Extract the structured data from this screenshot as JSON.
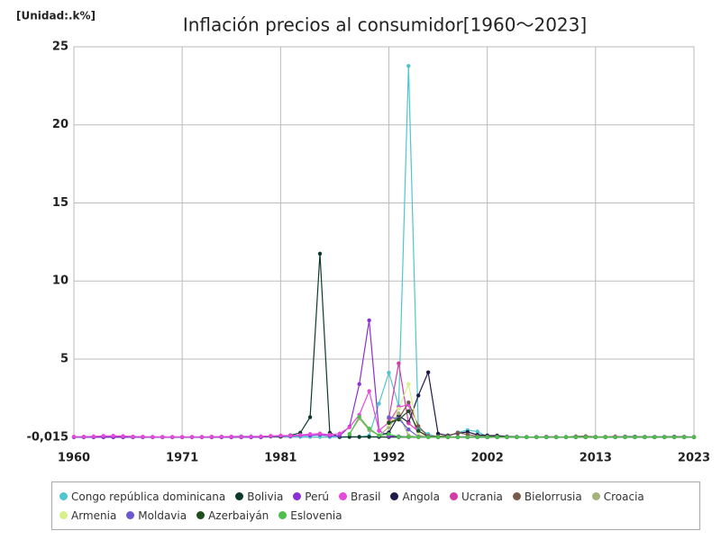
{
  "chart_data": {
    "type": "line",
    "title": "Inflación precios al consumidor[1960〜2023]",
    "unit_label": "[Unidad:.k%]",
    "x": [
      1960,
      1961,
      1962,
      1963,
      1964,
      1965,
      1966,
      1967,
      1968,
      1969,
      1970,
      1971,
      1972,
      1973,
      1974,
      1975,
      1976,
      1977,
      1978,
      1979,
      1980,
      1981,
      1982,
      1983,
      1984,
      1985,
      1986,
      1987,
      1988,
      1989,
      1990,
      1991,
      1992,
      1993,
      1994,
      1995,
      1996,
      1997,
      1998,
      1999,
      2000,
      2001,
      2002,
      2003,
      2004,
      2005,
      2006,
      2007,
      2008,
      2009,
      2010,
      2011,
      2012,
      2013,
      2014,
      2015,
      2016,
      2017,
      2018,
      2019,
      2020,
      2021,
      2022,
      2023
    ],
    "xlim": [
      1960,
      2023
    ],
    "xticks": [
      1960,
      1971,
      1981,
      1992,
      2002,
      2013,
      2023
    ],
    "ylim": [
      -0.015,
      25
    ],
    "yticks": [
      {
        "value": -0.015,
        "label": "-0,015"
      },
      5,
      10,
      15,
      20,
      25
    ],
    "grid": true,
    "legend": "bottom",
    "series": [
      {
        "name": "Congo república dominicana",
        "color": "#4fc6cd",
        "values": [
          0.01,
          0.02,
          0.03,
          0.02,
          0.03,
          0.02,
          0.01,
          0.01,
          0.02,
          0.01,
          0.01,
          0.01,
          0.01,
          0.01,
          0.02,
          0.03,
          0.03,
          0.06,
          0.05,
          0.04,
          0.04,
          0.03,
          0.03,
          0.02,
          0.02,
          0.02,
          0.01,
          0.01,
          0.02,
          0.01,
          0.1,
          2.15,
          4.13,
          1.99,
          23.77,
          0.54,
          0.2,
          0.01,
          0.03,
          0.3,
          0.45,
          0.36,
          0.03,
          0.01,
          0.01,
          0.02,
          0.01,
          0.01,
          0.02,
          0.01,
          0.01,
          0.02,
          0.01,
          0.01,
          0.01,
          0.01,
          0.02,
          0.01,
          0.01,
          0.01,
          0.01,
          0.01,
          0.01,
          0.01
        ]
      },
      {
        "name": "Bolivia",
        "color": "#0e3a2b",
        "values": [
          0,
          0,
          0,
          0,
          0,
          0,
          0,
          0,
          0,
          0,
          0,
          0,
          0,
          0,
          0,
          0,
          0,
          0,
          0,
          0,
          0.05,
          0.03,
          0.12,
          0.28,
          1.28,
          11.75,
          0.28,
          0.01,
          0.02,
          0.02,
          0.02,
          0.02,
          0.01,
          0.01,
          0.01,
          0.01,
          0.01,
          0,
          0,
          0,
          0,
          0,
          0,
          0,
          0,
          0,
          0,
          0,
          0,
          0,
          0,
          0,
          0,
          0,
          0,
          0,
          0,
          0,
          0,
          0,
          0,
          0,
          0,
          0
        ]
      },
      {
        "name": "Perú",
        "color": "#8b2fd6",
        "values": [
          0,
          0,
          0,
          0,
          0,
          0,
          0,
          0,
          0,
          0,
          0,
          0,
          0,
          0,
          0,
          0,
          0,
          0,
          0,
          0,
          0.06,
          0.08,
          0.06,
          0.11,
          0.11,
          0.16,
          0.08,
          0.09,
          0.67,
          3.4,
          7.48,
          0.41,
          0.07,
          0.05,
          0.02,
          0.01,
          0.01,
          0,
          0,
          0,
          0,
          0,
          0,
          0,
          0,
          0,
          0,
          0,
          0,
          0,
          0,
          0,
          0,
          0,
          0,
          0,
          0,
          0,
          0,
          0,
          0,
          0,
          0,
          0
        ]
      },
      {
        "name": "Brasil",
        "color": "#e64ad9",
        "values": [
          0.03,
          0.03,
          0.05,
          0.08,
          0.09,
          0.07,
          0.04,
          0.03,
          0.02,
          0.02,
          0.02,
          0.02,
          0.02,
          0.02,
          0.03,
          0.03,
          0.04,
          0.04,
          0.04,
          0.05,
          0.08,
          0.1,
          0.1,
          0.14,
          0.2,
          0.23,
          0.15,
          0.23,
          0.63,
          1.43,
          2.95,
          0.43,
          0.95,
          1.93,
          2.07,
          0.07,
          0.02,
          0.01,
          0,
          0,
          0,
          0,
          0,
          0,
          0,
          0,
          0,
          0,
          0,
          0,
          0,
          0,
          0,
          0,
          0,
          0,
          0,
          0,
          0,
          0,
          0,
          0,
          0,
          0
        ]
      },
      {
        "name": "Angola",
        "color": "#1e1b4b",
        "values": [
          null,
          null,
          null,
          null,
          null,
          null,
          null,
          null,
          null,
          null,
          null,
          null,
          null,
          null,
          null,
          null,
          null,
          null,
          null,
          null,
          null,
          null,
          null,
          null,
          null,
          null,
          null,
          null,
          null,
          null,
          null,
          0.08,
          0.3,
          1.38,
          0.95,
          2.67,
          4.15,
          0.22,
          0.11,
          0.25,
          0.33,
          0.15,
          0.11,
          0.1,
          0.04,
          0.02,
          0.01,
          0.01,
          0.01,
          0.01,
          0.01,
          0.01,
          0.01,
          0.01,
          0.01,
          0.01,
          0.03,
          0.03,
          0.02,
          0.02,
          0.02,
          0.03,
          0.02,
          0.01
        ]
      },
      {
        "name": "Ucrania",
        "color": "#d63aa8",
        "values": [
          null,
          null,
          null,
          null,
          null,
          null,
          null,
          null,
          null,
          null,
          null,
          null,
          null,
          null,
          null,
          null,
          null,
          null,
          null,
          null,
          null,
          null,
          null,
          null,
          null,
          null,
          null,
          null,
          null,
          null,
          null,
          null,
          1.21,
          4.73,
          0.89,
          0.38,
          0.08,
          0.02,
          0.01,
          0.02,
          0.03,
          0.01,
          0,
          0.01,
          0.01,
          0.01,
          0.01,
          0.01,
          0.03,
          0.02,
          0.01,
          0.01,
          0,
          0,
          0.01,
          0.05,
          0.01,
          0.01,
          0.01,
          0.01,
          0,
          0.01,
          0.02,
          0.01
        ]
      },
      {
        "name": "Bielorrusia",
        "color": "#7a5a4a",
        "values": [
          null,
          null,
          null,
          null,
          null,
          null,
          null,
          null,
          null,
          null,
          null,
          null,
          null,
          null,
          null,
          null,
          null,
          null,
          null,
          null,
          null,
          null,
          null,
          null,
          null,
          null,
          null,
          null,
          null,
          null,
          null,
          null,
          0.97,
          1.19,
          2.22,
          0.71,
          0.05,
          0.06,
          0.07,
          0.29,
          0.17,
          0.06,
          0.04,
          0.03,
          0.02,
          0.01,
          0.01,
          0.01,
          0.01,
          0.01,
          0.01,
          0.05,
          0.06,
          0.02,
          0.02,
          0.01,
          0.01,
          0.01,
          0,
          0,
          0.01,
          0.01,
          0.02,
          0.01
        ]
      },
      {
        "name": "Croacia",
        "color": "#a3b37a",
        "values": [
          null,
          null,
          null,
          null,
          null,
          null,
          null,
          null,
          null,
          null,
          null,
          null,
          null,
          null,
          null,
          null,
          null,
          null,
          null,
          null,
          null,
          null,
          null,
          null,
          null,
          null,
          null,
          null,
          0.2,
          1.2,
          0.45,
          0.12,
          0.63,
          1.52,
          0.1,
          0,
          0,
          0,
          0,
          0,
          0,
          0,
          0,
          0,
          0,
          0,
          0,
          0,
          0,
          0,
          0,
          0,
          0,
          0,
          0,
          0,
          0,
          0,
          0,
          0,
          0,
          0,
          0,
          0
        ]
      },
      {
        "name": "Armenia",
        "color": "#d8f08a",
        "values": [
          null,
          null,
          null,
          null,
          null,
          null,
          null,
          null,
          null,
          null,
          null,
          null,
          null,
          null,
          null,
          null,
          null,
          null,
          null,
          null,
          null,
          null,
          null,
          null,
          null,
          null,
          null,
          null,
          null,
          null,
          null,
          null,
          0.8,
          1.82,
          3.4,
          0.18,
          0.02,
          0,
          0,
          0,
          0,
          0,
          0,
          0,
          0,
          0,
          0,
          0,
          0,
          0,
          0,
          0,
          0,
          0,
          0,
          0,
          0,
          0,
          0,
          0,
          0,
          0,
          0,
          0
        ]
      },
      {
        "name": "Moldavia",
        "color": "#6a5acd",
        "values": [
          null,
          null,
          null,
          null,
          null,
          null,
          null,
          null,
          null,
          null,
          null,
          null,
          null,
          null,
          null,
          null,
          null,
          null,
          null,
          null,
          null,
          null,
          null,
          null,
          null,
          null,
          null,
          null,
          null,
          null,
          null,
          null,
          1.28,
          1.18,
          0.49,
          0.03,
          0.02,
          0,
          0,
          0,
          0,
          0,
          0,
          0,
          0,
          0,
          0,
          0,
          0,
          0,
          0,
          0,
          0,
          0,
          0,
          0,
          0,
          0,
          0,
          0,
          0,
          0,
          0,
          0
        ]
      },
      {
        "name": "Azerbaiyán",
        "color": "#1e4d1e",
        "values": [
          null,
          null,
          null,
          null,
          null,
          null,
          null,
          null,
          null,
          null,
          null,
          null,
          null,
          null,
          null,
          null,
          null,
          null,
          null,
          null,
          null,
          null,
          null,
          null,
          null,
          null,
          null,
          null,
          null,
          null,
          null,
          null,
          0.91,
          1.13,
          1.66,
          0.41,
          0.02,
          0,
          0,
          0,
          0,
          0,
          0,
          0,
          0,
          0,
          0,
          0,
          0,
          0,
          0,
          0,
          0,
          0,
          0,
          0,
          0,
          0,
          0,
          0,
          0,
          0,
          0,
          0
        ]
      },
      {
        "name": "Eslovenia",
        "color": "#4cbf4c",
        "values": [
          null,
          null,
          null,
          null,
          null,
          null,
          null,
          null,
          null,
          null,
          null,
          null,
          null,
          null,
          null,
          null,
          null,
          null,
          null,
          null,
          null,
          null,
          null,
          null,
          null,
          null,
          null,
          null,
          0.2,
          1.3,
          0.55,
          0.12,
          0.2,
          0.03,
          0.02,
          0,
          0,
          0,
          0,
          0,
          0,
          0,
          0,
          0,
          0,
          0,
          0,
          0,
          0,
          0,
          0,
          0,
          0,
          0,
          0,
          0,
          0,
          0,
          0,
          0,
          0,
          0,
          0,
          0
        ]
      }
    ]
  }
}
